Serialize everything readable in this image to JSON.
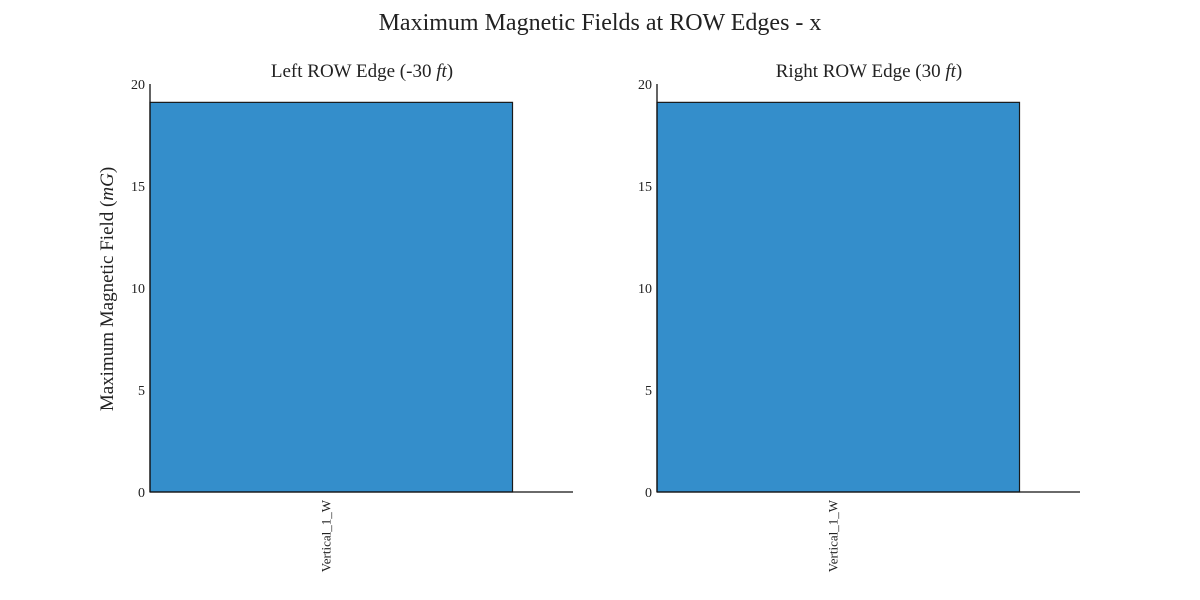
{
  "figure": {
    "title": "Maximum Magnetic Fields at ROW Edges - x",
    "ylabel_main": "Maximum Magnetic Field (",
    "ylabel_unit": "mG",
    "ylabel_close": ")"
  },
  "chart_data": [
    {
      "type": "bar",
      "title_prefix": "Left ROW Edge (-30 ",
      "title_unit": "ft",
      "title_suffix": ")",
      "categories": [
        "Vertical_1_W"
      ],
      "values": [
        19.1
      ],
      "ylim": [
        0,
        20
      ],
      "yticks": [
        "0",
        "5",
        "10",
        "15",
        "20"
      ],
      "grid": false,
      "bar_color": "#348ECB"
    },
    {
      "type": "bar",
      "title_prefix": "Right ROW Edge (30 ",
      "title_unit": "ft",
      "title_suffix": ")",
      "categories": [
        "Vertical_1_W"
      ],
      "values": [
        19.1
      ],
      "ylim": [
        0,
        20
      ],
      "yticks": [
        "0",
        "5",
        "10",
        "15",
        "20"
      ],
      "grid": false,
      "bar_color": "#348ECB"
    }
  ]
}
